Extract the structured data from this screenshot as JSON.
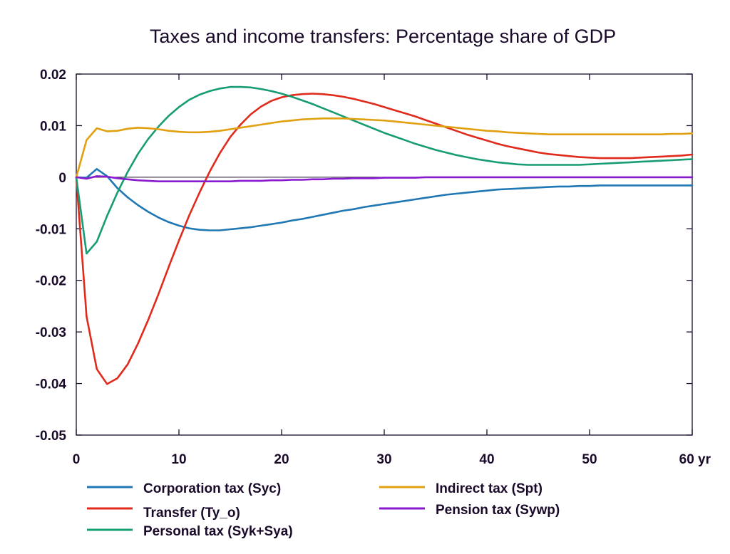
{
  "chart_data": {
    "type": "line",
    "title": "Taxes and income transfers: Percentage share of GDP",
    "xlabel": "",
    "ylabel": "",
    "x_unit_label": "yr",
    "xlim": [
      0,
      60
    ],
    "ylim": [
      -0.05,
      0.02
    ],
    "x_ticks": [
      0,
      10,
      20,
      30,
      40,
      50,
      60
    ],
    "x_tick_labels": [
      "0",
      "10",
      "20",
      "30",
      "40",
      "50",
      "60 yr"
    ],
    "y_ticks": [
      0.02,
      0.01,
      0,
      -0.01,
      -0.02,
      -0.03,
      -0.04,
      -0.05
    ],
    "y_tick_labels": [
      "0.02",
      "0.01",
      "0",
      "-0.01",
      "-0.02",
      "-0.03",
      "-0.04",
      "-0.05"
    ],
    "grid": false,
    "legend_position": "bottom",
    "x": [
      0,
      1,
      2,
      3,
      4,
      5,
      6,
      7,
      8,
      9,
      10,
      11,
      12,
      13,
      14,
      15,
      16,
      17,
      18,
      19,
      20,
      21,
      22,
      23,
      24,
      25,
      26,
      27,
      28,
      29,
      30,
      31,
      32,
      33,
      34,
      35,
      36,
      37,
      38,
      39,
      40,
      41,
      42,
      43,
      44,
      45,
      46,
      47,
      48,
      49,
      50,
      51,
      52,
      53,
      54,
      55,
      56,
      57,
      58,
      59,
      60
    ],
    "series": [
      {
        "name": "Corporation tax (Syc)",
        "color": "#1f77b4",
        "values": [
          0,
          -0.0001,
          0.0016,
          0.0002,
          -0.0021,
          -0.0039,
          -0.0054,
          -0.0067,
          -0.0078,
          -0.0087,
          -0.0094,
          -0.0099,
          -0.0102,
          -0.0103,
          -0.0103,
          -0.0101,
          -0.0099,
          -0.0097,
          -0.0094,
          -0.0091,
          -0.0088,
          -0.0084,
          -0.0081,
          -0.0077,
          -0.0073,
          -0.0069,
          -0.0065,
          -0.0062,
          -0.0058,
          -0.0055,
          -0.0052,
          -0.0049,
          -0.0046,
          -0.0043,
          -0.004,
          -0.0037,
          -0.0034,
          -0.0032,
          -0.003,
          -0.0028,
          -0.0026,
          -0.0024,
          -0.0023,
          -0.0022,
          -0.0021,
          -0.002,
          -0.0019,
          -0.0018,
          -0.0018,
          -0.0017,
          -0.0017,
          -0.0016,
          -0.0016,
          -0.0016,
          -0.0016,
          -0.0016,
          -0.0016,
          -0.0016,
          -0.0016,
          -0.0016,
          -0.0016
        ]
      },
      {
        "name": "Transfer (Ty_o)",
        "color": "#e02a1c",
        "values": [
          0,
          -0.027,
          -0.0372,
          -0.0401,
          -0.039,
          -0.0363,
          -0.0323,
          -0.0277,
          -0.0227,
          -0.0174,
          -0.0123,
          -0.0074,
          -0.003,
          0.0011,
          0.0047,
          0.0078,
          0.0102,
          0.0122,
          0.0137,
          0.0148,
          0.0155,
          0.0159,
          0.0161,
          0.0162,
          0.0161,
          0.0159,
          0.0156,
          0.0152,
          0.0147,
          0.0142,
          0.0136,
          0.013,
          0.0124,
          0.0118,
          0.0111,
          0.0104,
          0.0097,
          0.009,
          0.0083,
          0.0077,
          0.0071,
          0.0065,
          0.006,
          0.0056,
          0.0052,
          0.0048,
          0.0045,
          0.0043,
          0.0041,
          0.0039,
          0.0038,
          0.0037,
          0.0037,
          0.0037,
          0.0037,
          0.0038,
          0.0039,
          0.004,
          0.0041,
          0.0042,
          0.0044
        ]
      },
      {
        "name": "Personal tax (Syk+Sya)",
        "color": "#179c74",
        "values": [
          0,
          -0.0148,
          -0.0125,
          -0.0075,
          -0.003,
          0.001,
          0.0045,
          0.0074,
          0.0098,
          0.0119,
          0.0136,
          0.015,
          0.016,
          0.0167,
          0.0172,
          0.0175,
          0.0175,
          0.0174,
          0.0171,
          0.0167,
          0.0162,
          0.0156,
          0.0149,
          0.0142,
          0.0134,
          0.0126,
          0.0118,
          0.011,
          0.0102,
          0.0094,
          0.0086,
          0.0079,
          0.0072,
          0.0065,
          0.0059,
          0.0053,
          0.0048,
          0.0043,
          0.0039,
          0.0035,
          0.0032,
          0.0029,
          0.0027,
          0.0025,
          0.0024,
          0.0024,
          0.0024,
          0.0024,
          0.0024,
          0.0024,
          0.0025,
          0.0026,
          0.0027,
          0.0028,
          0.0029,
          0.003,
          0.0031,
          0.0032,
          0.0033,
          0.0034,
          0.0035
        ]
      },
      {
        "name": "Indirect tax (Spt)",
        "color": "#e0a010",
        "values": [
          0,
          0.0072,
          0.0095,
          0.0089,
          0.009,
          0.0094,
          0.0096,
          0.0095,
          0.0093,
          0.009,
          0.0088,
          0.0087,
          0.0087,
          0.0088,
          0.009,
          0.0093,
          0.0096,
          0.0099,
          0.0102,
          0.0105,
          0.0108,
          0.011,
          0.0112,
          0.0113,
          0.0114,
          0.0114,
          0.0114,
          0.0113,
          0.0112,
          0.0111,
          0.011,
          0.0108,
          0.0106,
          0.0104,
          0.0102,
          0.01,
          0.0098,
          0.0096,
          0.0094,
          0.0092,
          0.009,
          0.0089,
          0.0087,
          0.0086,
          0.0085,
          0.0084,
          0.0083,
          0.0083,
          0.0083,
          0.0083,
          0.0083,
          0.0083,
          0.0083,
          0.0083,
          0.0083,
          0.0083,
          0.0083,
          0.0083,
          0.0084,
          0.0084,
          0.0085
        ]
      },
      {
        "name": "Pension tax (Sywp)",
        "color": "#8a1ad0",
        "values": [
          0,
          -0.0003,
          0.0002,
          0.0001,
          -0.0002,
          -0.0004,
          -0.0006,
          -0.0007,
          -0.0008,
          -0.0008,
          -0.0008,
          -0.0008,
          -0.0008,
          -0.0008,
          -0.0008,
          -0.0008,
          -0.0007,
          -0.0007,
          -0.0007,
          -0.0006,
          -0.0006,
          -0.0005,
          -0.0005,
          -0.0004,
          -0.0004,
          -0.0003,
          -0.0003,
          -0.0002,
          -0.0002,
          -0.0002,
          -0.0001,
          -0.0001,
          -0.0001,
          -0.0001,
          0,
          0,
          0,
          0,
          0,
          0,
          0,
          0,
          0,
          0,
          0,
          0,
          0,
          0,
          0,
          0,
          0,
          0,
          0,
          0,
          0,
          0,
          0,
          0,
          0,
          0,
          0
        ]
      }
    ]
  }
}
